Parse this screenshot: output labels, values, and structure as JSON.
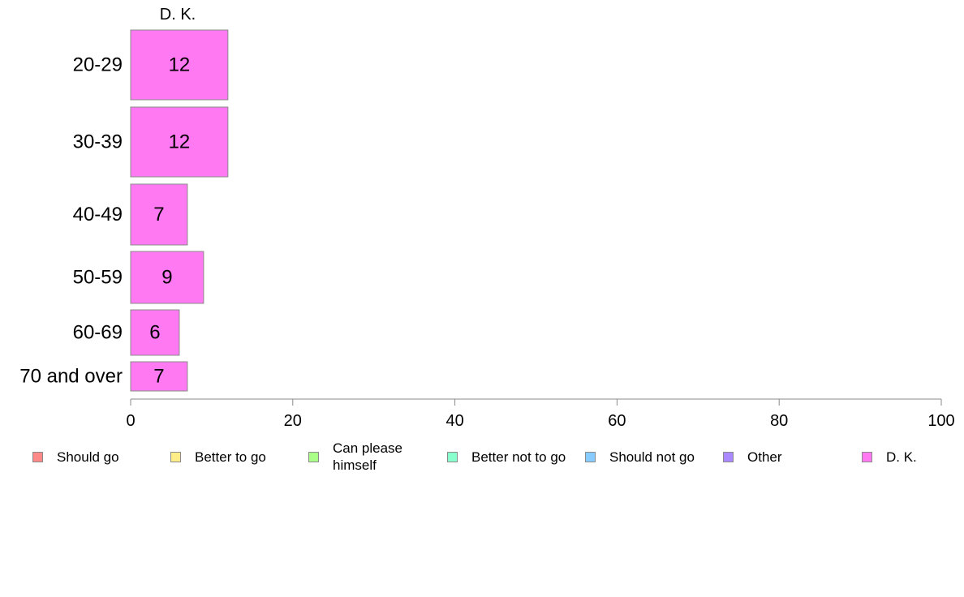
{
  "chart_data": {
    "type": "bar",
    "orientation": "horizontal",
    "column_title": "D. K.",
    "categories": [
      "20-29",
      "30-39",
      "40-49",
      "50-59",
      "60-69",
      "70 and over"
    ],
    "series": [
      {
        "name": "D. K.",
        "values": [
          12,
          12,
          7,
          9,
          6,
          7
        ],
        "labels": [
          "12",
          "12",
          "7",
          "9",
          "6",
          "7"
        ],
        "color": "#ff79f2"
      }
    ],
    "xlim": [
      0,
      100
    ],
    "x_ticks": [
      0,
      20,
      40,
      60,
      80,
      100
    ],
    "x_tick_labels": [
      "0",
      "20",
      "40",
      "60",
      "80",
      "100"
    ],
    "grid": false,
    "legend_position": "bottom",
    "legend": [
      {
        "label": "Should go",
        "color": "#ff8888"
      },
      {
        "label": "Better to go",
        "color": "#ffee88"
      },
      {
        "label": "Can please\nhimself",
        "color": "#aaff88"
      },
      {
        "label": "Better not to go",
        "color": "#88ffcc"
      },
      {
        "label": "Should not go",
        "color": "#88ccff"
      },
      {
        "label": "Other",
        "color": "#aa88ff"
      },
      {
        "label": "D. K.",
        "color": "#ff79f2"
      }
    ]
  }
}
